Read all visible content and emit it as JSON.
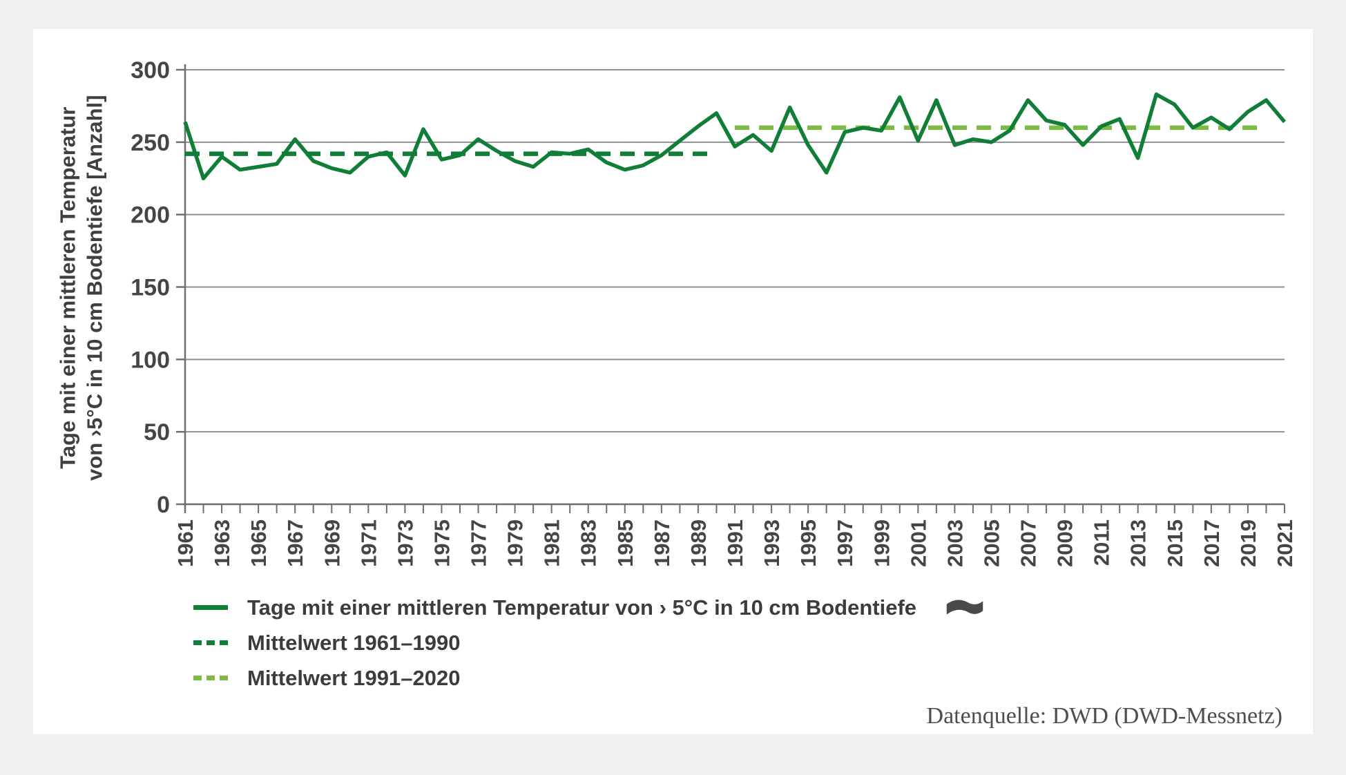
{
  "panel": {
    "background": "#ffffff",
    "page_background": "#efefef"
  },
  "colors": {
    "series_green": "#117e38",
    "mean_recent_green": "#7cba45",
    "gridline": "#8f8f8f",
    "axis": "#6f6f6f",
    "tick_text": "#454545",
    "legend_text": "#3c3c3c",
    "flag_icon": "#4a4a4a",
    "source_text": "#4e4e4e"
  },
  "y_axis_title_line1": "Tage mit einer mittleren Temperatur",
  "y_axis_title_line2": "von ›5°C in 10 cm Bodentiefe [Anzahl]",
  "legend": {
    "series_label": "Tage mit einer mittleren Temperatur von › 5°C in 10 cm Bodentiefe",
    "mean_old_label": "Mittelwert 1961–1990",
    "mean_recent_label": "Mittelwert 1991–2020"
  },
  "source": "Datenquelle: DWD (DWD-Messnetz)",
  "chart_data": {
    "type": "line",
    "title": "",
    "xlabel": "",
    "ylabel": "Tage mit einer mittleren Temperatur von ›5°C in 10 cm Bodentiefe [Anzahl]",
    "ylim": [
      0,
      300
    ],
    "ytick_step": 50,
    "xlim": [
      1961,
      2021
    ],
    "xtick_label_step": 2,
    "grid": true,
    "legend_position": "bottom-left",
    "x": [
      1961,
      1962,
      1963,
      1964,
      1965,
      1966,
      1967,
      1968,
      1969,
      1970,
      1971,
      1972,
      1973,
      1974,
      1975,
      1976,
      1977,
      1978,
      1979,
      1980,
      1981,
      1982,
      1983,
      1984,
      1985,
      1986,
      1987,
      1988,
      1989,
      1990,
      1991,
      1992,
      1993,
      1994,
      1995,
      1996,
      1997,
      1998,
      1999,
      2000,
      2001,
      2002,
      2003,
      2004,
      2005,
      2006,
      2007,
      2008,
      2009,
      2010,
      2011,
      2012,
      2013,
      2014,
      2015,
      2016,
      2017,
      2018,
      2019,
      2020,
      2021
    ],
    "series": [
      {
        "name": "Tage mit einer mittleren Temperatur von › 5°C in 10 cm Bodentiefe",
        "color": "#117e38",
        "style": "solid",
        "values": [
          264,
          225,
          240,
          231,
          233,
          235,
          252,
          237,
          232,
          229,
          240,
          243,
          227,
          259,
          238,
          241,
          252,
          244,
          237,
          233,
          243,
          242,
          245,
          236,
          231,
          234,
          241,
          251,
          261,
          270,
          247,
          255,
          244,
          274,
          248,
          229,
          257,
          260,
          258,
          281,
          251,
          279,
          248,
          252,
          250,
          258,
          279,
          265,
          262,
          248,
          261,
          266,
          239,
          283,
          276,
          260,
          267,
          259,
          271,
          279,
          264
        ]
      }
    ],
    "mean_lines": [
      {
        "name": "Mittelwert 1961–1990",
        "value": 242,
        "from": 1961,
        "to": 1990,
        "color": "#117e38",
        "style": "dashed"
      },
      {
        "name": "Mittelwert 1991–2020",
        "value": 260,
        "from": 1991,
        "to": 2020,
        "color": "#7cba45",
        "style": "dashed"
      }
    ]
  }
}
